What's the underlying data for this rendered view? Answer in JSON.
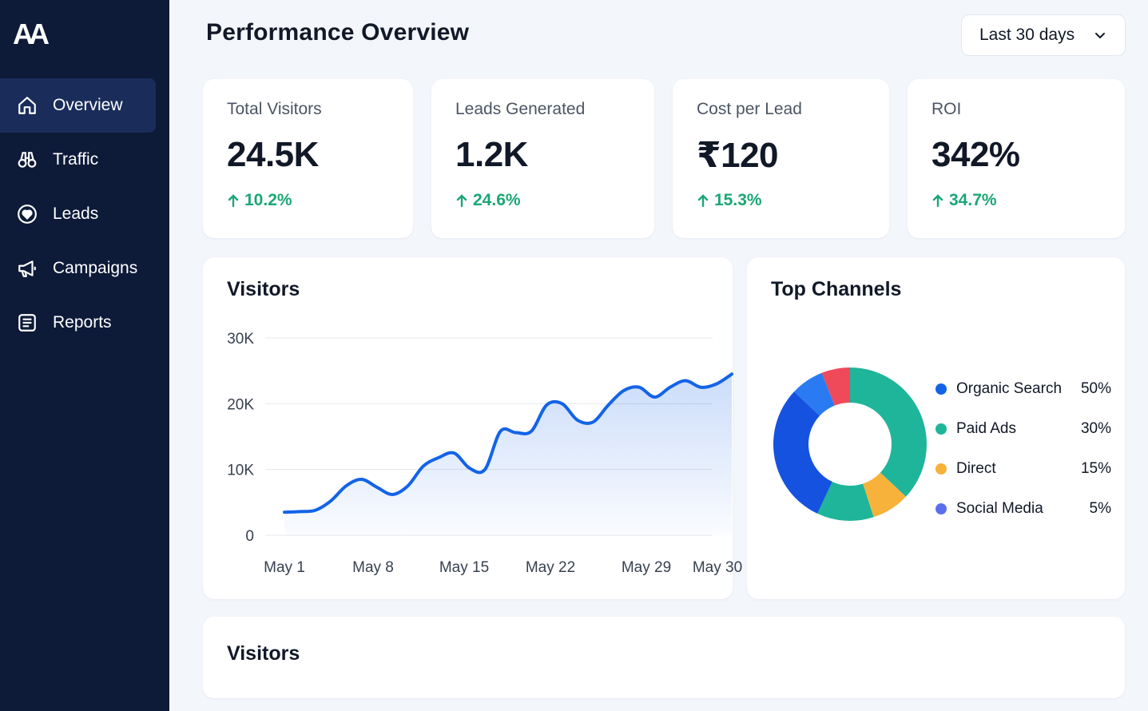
{
  "app": {
    "logo_text": "AA"
  },
  "sidebar": {
    "items": [
      {
        "label": "Overview",
        "icon": "home-icon",
        "active": true
      },
      {
        "label": "Traffic",
        "icon": "binoculars-icon",
        "active": false
      },
      {
        "label": "Leads",
        "icon": "heart-icon",
        "active": false
      },
      {
        "label": "Campaigns",
        "icon": "megaphone-icon",
        "active": false
      },
      {
        "label": "Reports",
        "icon": "report-icon",
        "active": false
      }
    ]
  },
  "header": {
    "title": "Performance Overview",
    "range": {
      "selected": "Last 30 days",
      "icon": "chevron-down-icon"
    }
  },
  "kpis": [
    {
      "label": "Total Visitors",
      "value": "24.5K",
      "delta": "10.2%",
      "direction": "up"
    },
    {
      "label": "Leads Generated",
      "value": "1.2K",
      "delta": "24.6%",
      "direction": "up"
    },
    {
      "label": "Cost per Lead",
      "value": "₹120",
      "delta": "15.3%",
      "direction": "up"
    },
    {
      "label": "ROI",
      "value": "342%",
      "delta": "34.7%",
      "direction": "up"
    }
  ],
  "visitors_card": {
    "title": "Visitors"
  },
  "channels_card": {
    "title": "Top Channels"
  },
  "bottom_card": {
    "title": "Visitors"
  },
  "colors": {
    "accent": "#1363e8",
    "positive": "#1aa774",
    "sidebar_bg": "#0d1a38",
    "sidebar_active": "#1a2d5a"
  },
  "chart_data": [
    {
      "type": "area",
      "title": "Visitors",
      "xlabel": "",
      "ylabel": "",
      "ylim": [
        0,
        30000
      ],
      "yticks": [
        "0",
        "10K",
        "20K",
        "30K"
      ],
      "yticks_values": [
        0,
        10000,
        20000,
        30000
      ],
      "xticks": [
        "May 1",
        "May 8",
        "May 15",
        "May 22",
        "May 29",
        "May 30"
      ],
      "xticks_values": [
        1,
        8,
        15,
        22,
        29,
        30
      ],
      "x": [
        1,
        2,
        3,
        4,
        5,
        6,
        7,
        8,
        9,
        10,
        11,
        12,
        13,
        14,
        15,
        16,
        17,
        18,
        19,
        20,
        21,
        22,
        23,
        24,
        25,
        26,
        27,
        28,
        29,
        30
      ],
      "values": [
        3500,
        3600,
        3800,
        5200,
        7500,
        8500,
        7300,
        6200,
        7500,
        10500,
        11800,
        12500,
        10200,
        10000,
        15800,
        15600,
        15800,
        19800,
        20000,
        17500,
        17200,
        19800,
        22000,
        22500,
        21000,
        22500,
        23500,
        22500,
        23000,
        24500
      ],
      "color": "#1363e8",
      "grid": true
    },
    {
      "type": "pie",
      "title": "Top Channels",
      "donut": true,
      "legend_position": "right",
      "slices": [
        {
          "name": "Organic Search",
          "value": 50,
          "label": "50%",
          "color": "#1fb59a"
        },
        {
          "name": "Paid Ads",
          "value": 30,
          "label": "30%",
          "color": "#1fb59a"
        },
        {
          "name": "Direct",
          "value": 15,
          "label": "15%",
          "color": "#f7b23b"
        },
        {
          "name": "Social Media",
          "value": 5,
          "label": "5%",
          "color": "#5b6ef0"
        }
      ],
      "legend_colors": [
        "#1363e8",
        "#1fb59a",
        "#f7b23b",
        "#5b6ef0"
      ],
      "ring_colors": [
        "#1fb59a",
        "#f7b23b",
        "#1fb59a",
        "#1552e0",
        "#2a7bf2",
        "#ef4a5a"
      ],
      "ring_values": [
        37,
        8,
        12,
        30,
        7,
        6
      ]
    }
  ]
}
